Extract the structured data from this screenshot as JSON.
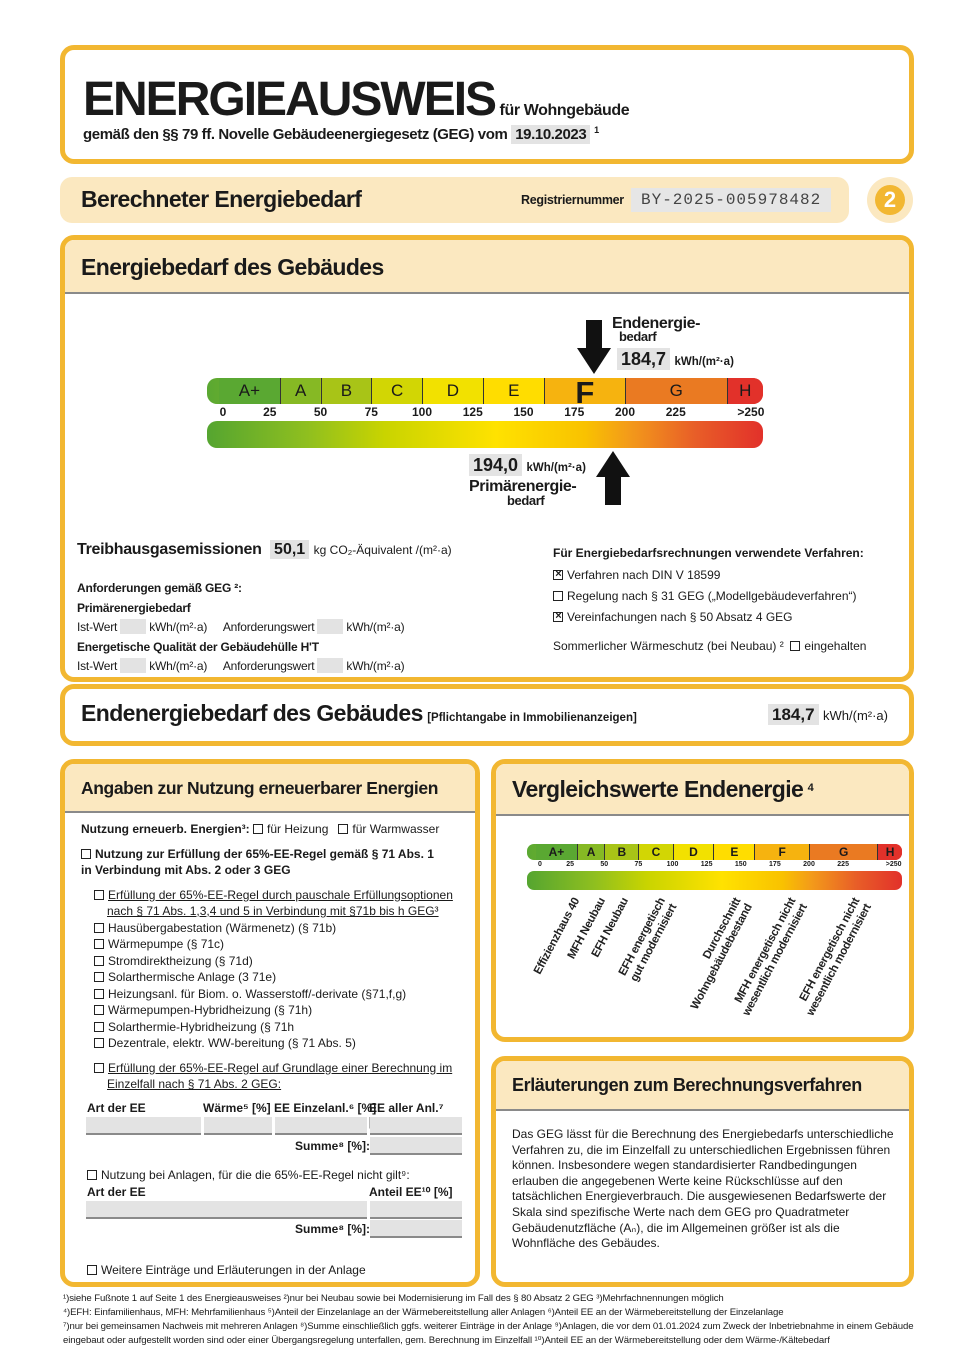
{
  "header": {
    "title": "ENERGIEAUSWEIS",
    "subtitle": "für Wohngebäude",
    "law_text": "gemäß den §§ 79 ff. Novelle Gebäudeenergiegesetz (GEG) vom",
    "law_date": "19.10.2023",
    "footnote_ref": "1"
  },
  "section_bar": {
    "title": "Berechneter Energiebedarf",
    "reg_label": "Registriernummer",
    "reg_number": "BY-2025-005978482",
    "page_number": "2"
  },
  "energy_demand": {
    "title": "Energiebedarf des Gebäudes",
    "end_label_1": "Endenergie-",
    "end_label_2": "bedarf",
    "end_value": "184,7",
    "end_unit": "kWh/(m²·a)",
    "primary_value": "194,0",
    "primary_unit": "kWh/(m²·a)",
    "primary_label_1": "Primärenergie-",
    "primary_label_2": "bedarf",
    "current_class": "F",
    "classes": [
      {
        "label": "A+",
        "from": 0,
        "to": 30,
        "color": "#5aa832"
      },
      {
        "label": "A",
        "from": 30,
        "to": 50,
        "color": "#86b924"
      },
      {
        "label": "B",
        "from": 50,
        "to": 75,
        "color": "#a8c417"
      },
      {
        "label": "C",
        "from": 75,
        "to": 100,
        "color": "#d2d604"
      },
      {
        "label": "D",
        "from": 100,
        "to": 130,
        "color": "#f2e100"
      },
      {
        "label": "E",
        "from": 130,
        "to": 160,
        "color": "#ffdd00"
      },
      {
        "label": "F",
        "from": 160,
        "to": 200,
        "color": "#f6b30f"
      },
      {
        "label": "G",
        "from": 200,
        "to": 250,
        "color": "#ea7a22"
      },
      {
        "label": "H",
        "from": 250,
        "to": 270,
        "color": "#e2312a"
      }
    ],
    "ticks": [
      "0",
      "25",
      "50",
      "75",
      "100",
      "125",
      "150",
      "175",
      "200",
      "225",
      ">250"
    ],
    "end_energy_kwh": 184.7,
    "primary_energy_kwh": 194.0
  },
  "emissions": {
    "label": "Treibhausgasemissionen",
    "value": "50,1",
    "unit": "kg CO₂-Äquivalent /(m²·a)"
  },
  "requirements": {
    "title": "Anforderungen gemäß GEG ²:",
    "primary_title": "Primärenergiebedarf",
    "ist": "Ist-Wert",
    "unit": "kWh/(m²·a)",
    "anf": "Anforderungswert",
    "envelope_title": "Energetische Qualität der Gebäudehülle H'T"
  },
  "methods": {
    "title": "Für Energiebedarfsrechnungen verwendete Verfahren:",
    "items": [
      {
        "label": "Verfahren nach DIN V 18599",
        "checked": true
      },
      {
        "label": "Regelung nach § 31 GEG („Modellgebäudeverfahren“)",
        "checked": false
      },
      {
        "label": "Vereinfachungen nach § 50 Absatz 4 GEG",
        "checked": true
      }
    ],
    "summer_label": "Sommerlicher Wärmeschutz (bei Neubau) ²",
    "summer_option": "eingehalten",
    "summer_checked": false
  },
  "final_energy": {
    "title": "Endenergiebedarf des Gebäudes",
    "note": "[Pflichtangabe in Immobilienanzeigen]",
    "value": "184,7",
    "unit": "kWh/(m²·a)"
  },
  "renewables": {
    "title": "Angaben zur Nutzung erneuerbarer Energien",
    "usage_label": "Nutzung erneuerb. Energien³:",
    "usage_heating": "für Heizung",
    "usage_water": "für Warmwasser",
    "rule_65": "Nutzung zur Erfüllung der 65%-EE-Regel gemäß § 71 Abs. 1 in Verbindung mit Abs. 2 oder 3 GEG",
    "lump_title": "Erfüllung der 65%-EE-Regel durch pauschale Erfüllungsoptionen nach § 71 Abs. 1,3,4 und 5 in Verbindung mit §71b bis h GEG³",
    "lump_items": [
      "Hausübergabestation (Wärmenetz) (§ 71b)",
      "Wärmepumpe (§ 71c)",
      "Stromdirektheizung (§ 71d)",
      "Solarthermische Anlage (3 71e)",
      "Heizungsanl. für Biom. o. Wasserstoff/-derivate (§71,f,g)",
      "Wärmepumpen-Hybridheizung (§ 71h)",
      "Solarthermie-Hybridheizung (§ 71h",
      "Dezentrale, elektr. WW-bereitung (§ 71 Abs. 5)"
    ],
    "calc_title": "Erfüllung der 65%-EE-Regel auf Grundlage einer Berechnung im Einzelfall nach § 71 Abs. 2 GEG:",
    "table1_headers": [
      "Art der EE",
      "Wärme⁵ [%]",
      "EE Einzelanl.⁶ [%]",
      "EE aller Anl.⁷ [%]"
    ],
    "sum_label": "Summe⁸ [%]:",
    "other_title": "Nutzung bei Anlagen, für die die 65%-EE-Regel nicht gilt⁹:",
    "table2_headers": [
      "Art der EE",
      "Anteil EE¹⁰ [%]"
    ],
    "more": "Weitere Einträge und Erläuterungen in der Anlage"
  },
  "comparison": {
    "title": "Vergleichswerte Endenergie",
    "footnote_ref": "4",
    "labels": [
      [
        "Effizienzhaus 40"
      ],
      [
        "MFH Neubau"
      ],
      [
        "EFH Neubau"
      ],
      [
        "EFH energetisch",
        "gut modernisiert"
      ],
      [
        "Durchschnitt",
        "Wohngebäudebestand"
      ],
      [
        "MFH energetisch nicht",
        "wesentlich modernisiert"
      ],
      [
        "EFH energetisch nicht",
        "wesentlich modernisiert"
      ]
    ]
  },
  "explanation": {
    "title": "Erläuterungen zum Berechnungsverfahren",
    "text": "Das GEG lässt für die Berechnung des Energiebedarfs unterschiedliche Verfahren zu, die im Einzelfall zu unterschiedlichen Ergebnissen führen können. Insbesondere wegen standardisierter Randbedingungen erlauben die angegebenen Werte keine Rückschlüsse auf den tatsächlichen Energieverbrauch. Die ausgewiesenen Bedarfswerte der Skala sind spezifische Werte nach dem GEG pro Quadratmeter Gebäudenutzfläche (Aₙ), die im Allgemeinen größer ist als die Wohnfläche des Gebäudes."
  },
  "footnotes": [
    "¹)siehe Fußnote 1 auf Seite 1 des Energieausweises   ²)nur bei Neubau sowie bei Modernisierung im Fall des § 80 Absatz 2 GEG   ³)Mehrfachnennungen möglich",
    "⁴)EFH: Einfamilienhaus, MFH: Mehrfamilienhaus   ⁵)Anteil der Einzelanlage an der Wärmebereitstellung aller Anlagen   ⁶)Anteil EE an der Wärmebereitstellung der Einzelanlage",
    "⁷)nur bei gemeinsamen Nachweis mit mehreren Anlagen   ⁸)Summe einschließlich ggfs. weiterer Einträge in der Anlage   ⁹)Anlagen, die vor dem 01.01.2024 zum Zweck der Inbetriebnahme in einem Gebäude eingebaut oder aufgestellt worden sind oder einer Übergangsregelung unterfallen, gem. Berechnung im Einzelfall   ¹⁰)Anteil EE an der Wärmebereitstellung oder dem Wärme-/Kältebedarf"
  ],
  "colors": {
    "accent": "#f2b731",
    "header_fill": "#fbe8c0",
    "field": "#e3e3e3"
  }
}
